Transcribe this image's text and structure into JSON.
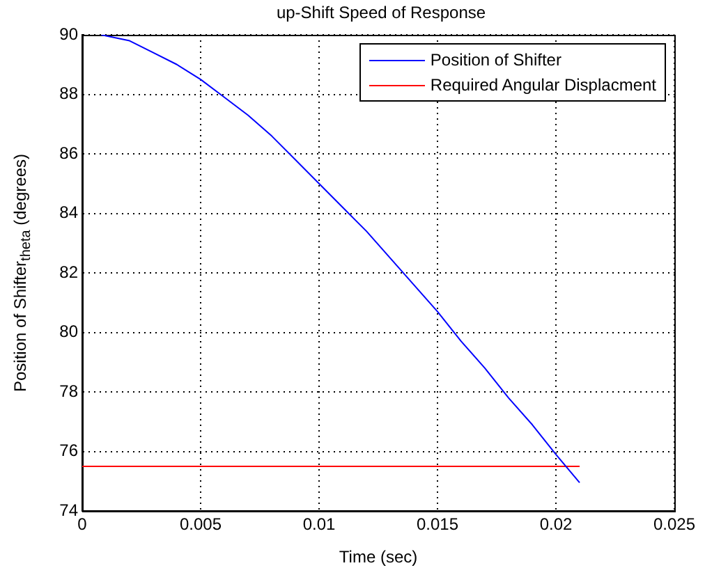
{
  "chart_data": {
    "type": "line",
    "title": "up-Shift Speed of Response",
    "xlabel": "Time (sec)",
    "ylabel": "Position of Shifter$_{theta}$ (degrees)",
    "xlim": [
      0,
      0.025
    ],
    "xticks": [
      0,
      0.005,
      0.01,
      0.015,
      0.02,
      0.025
    ],
    "ylim": [
      74,
      90
    ],
    "yticks": [
      74,
      76,
      78,
      80,
      82,
      84,
      86,
      88,
      90
    ],
    "grid": true,
    "legend": "top right",
    "line_style": "solid",
    "marker": "none",
    "series": [
      {
        "name": "Position of Shifter",
        "color": "#0000ff",
        "x": [
          0.0008,
          0.002,
          0.003,
          0.004,
          0.005,
          0.006,
          0.007,
          0.008,
          0.009,
          0.01,
          0.011,
          0.012,
          0.013,
          0.014,
          0.015,
          0.016,
          0.017,
          0.018,
          0.019,
          0.02,
          0.021
        ],
        "values": [
          90,
          89.8,
          89.4,
          89.0,
          88.5,
          87.9,
          87.3,
          86.6,
          85.8,
          85.0,
          84.2,
          83.4,
          82.5,
          81.6,
          80.7,
          79.7,
          78.8,
          77.8,
          76.9,
          75.9,
          74.95
        ]
      },
      {
        "name": "Required Angular Displacment",
        "color": "#ff0000",
        "x": [
          0,
          0.021
        ],
        "values": [
          75.5,
          75.5
        ]
      }
    ]
  }
}
